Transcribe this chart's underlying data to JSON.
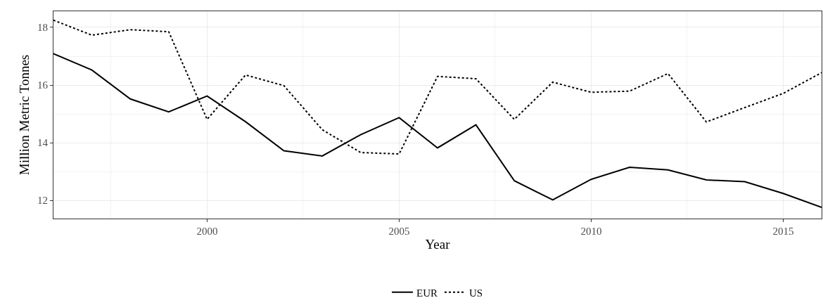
{
  "chart_data": {
    "type": "line",
    "xlabel": "Year",
    "ylabel": "Million Metric Tonnes",
    "x": [
      1996,
      1997,
      1998,
      1999,
      2000,
      2001,
      2002,
      2003,
      2004,
      2005,
      2006,
      2007,
      2008,
      2009,
      2010,
      2011,
      2012,
      2013,
      2014,
      2015,
      2016
    ],
    "series": [
      {
        "name": "EUR",
        "color": "#000000",
        "line_style": "solid",
        "values": [
          17.09,
          16.52,
          15.52,
          15.07,
          15.62,
          14.73,
          13.72,
          13.54,
          14.28,
          14.87,
          13.82,
          14.62,
          12.68,
          12.02,
          12.73,
          13.15,
          13.06,
          12.71,
          12.65,
          12.24,
          11.76
        ]
      },
      {
        "name": "US",
        "color": "#000000",
        "line_style": "dotted",
        "values": [
          18.25,
          17.73,
          17.92,
          17.85,
          14.81,
          16.35,
          15.98,
          14.45,
          13.66,
          13.61,
          16.3,
          16.22,
          14.81,
          16.1,
          15.75,
          15.79,
          16.4,
          14.72,
          15.22,
          15.71,
          16.43
        ]
      }
    ],
    "xlim": [
      1996,
      2016
    ],
    "xticks": [
      2000,
      2005,
      2010,
      2015
    ],
    "ylim": [
      11.37,
      18.56
    ],
    "yticks": [
      12,
      14,
      16,
      18
    ],
    "grid": true,
    "legend": "bottom",
    "marker": "none"
  }
}
